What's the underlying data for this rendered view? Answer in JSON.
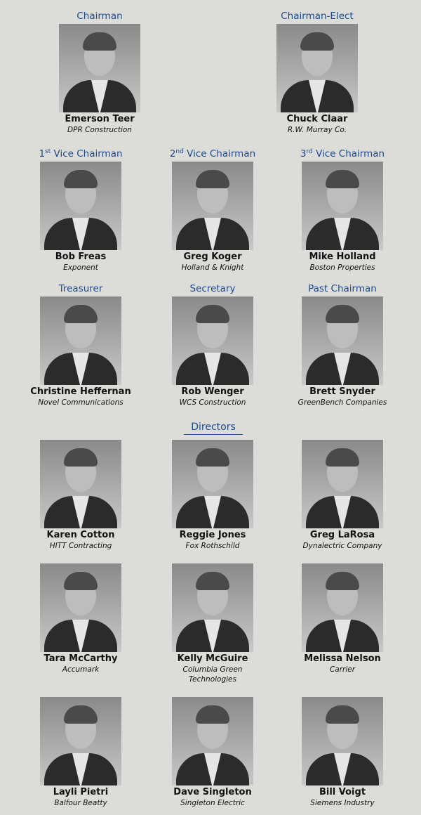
{
  "officers": [
    {
      "role": "Chairman",
      "name": "Emerson Teer",
      "company": "DPR Construction"
    },
    {
      "role": "Chairman-Elect",
      "name": "Chuck Claar",
      "company": "R.W. Murray Co."
    },
    {
      "role_num": "1",
      "role_sup": "st",
      "role": "Vice Chairman",
      "name": "Bob Freas",
      "company": "Exponent"
    },
    {
      "role_num": "2",
      "role_sup": "nd",
      "role": "Vice Chairman",
      "name": "Greg Koger",
      "company": "Holland & Knight"
    },
    {
      "role_num": "3",
      "role_sup": "rd",
      "role": "Vice Chairman",
      "name": "Mike Holland",
      "company": "Boston Properties"
    },
    {
      "role": "Treasurer",
      "name": "Christine Heffernan",
      "company": "Novel Communications"
    },
    {
      "role": "Secretary",
      "name": "Rob Wenger",
      "company": "WCS Construction"
    },
    {
      "role": "Past Chairman",
      "name": "Brett Snyder",
      "company": "GreenBench Companies"
    }
  ],
  "directors_title": "Directors",
  "directors": [
    {
      "name": "Karen Cotton",
      "company": "HITT Contracting"
    },
    {
      "name": "Reggie Jones",
      "company": "Fox Rothschild"
    },
    {
      "name": "Greg LaRosa",
      "company": "Dynalectric Company"
    },
    {
      "name": "Tara McCarthy",
      "company": "Accumark"
    },
    {
      "name": "Kelly McGuire",
      "company": "Columbia Green Technologies"
    },
    {
      "name": "Melissa Nelson",
      "company": "Carrier"
    },
    {
      "name": "Layli Pietri",
      "company": "Balfour Beatty"
    },
    {
      "name": "Dave Singleton",
      "company": "Singleton Electric"
    },
    {
      "name": "Bill Voigt",
      "company": "Siemens Industry"
    }
  ],
  "colors": {
    "background": "#dcdcd8",
    "role_text": "#1d4a8c"
  }
}
